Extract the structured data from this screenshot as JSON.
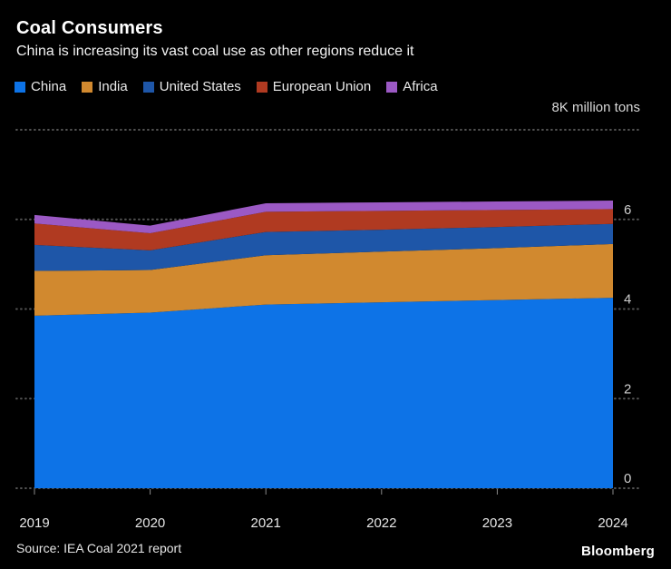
{
  "header": {
    "title": "Coal Consumers",
    "subtitle": "China is increasing its vast coal use as other regions reduce it"
  },
  "unit_label": "8K million tons",
  "footer": {
    "source": "Source: IEA Coal 2021 report",
    "logo": "Bloomberg"
  },
  "chart_data": {
    "type": "area",
    "stacked": true,
    "title": "Coal Consumers",
    "subtitle": "China is increasing its vast coal use as other regions reduce it",
    "xlabel": "",
    "ylabel": "8K million tons",
    "x": [
      2019,
      2020,
      2021,
      2022,
      2023,
      2024
    ],
    "series": [
      {
        "name": "China",
        "color": "#0d73e7",
        "values": [
          3.85,
          3.92,
          4.1,
          4.15,
          4.2,
          4.25
        ]
      },
      {
        "name": "India",
        "color": "#d1892f",
        "values": [
          1.0,
          0.95,
          1.1,
          1.13,
          1.16,
          1.2
        ]
      },
      {
        "name": "United States",
        "color": "#1e56a8",
        "values": [
          0.58,
          0.44,
          0.52,
          0.49,
          0.47,
          0.45
        ]
      },
      {
        "name": "European Union",
        "color": "#b03a21",
        "values": [
          0.48,
          0.38,
          0.45,
          0.42,
          0.38,
          0.33
        ]
      },
      {
        "name": "Africa",
        "color": "#9b59c4",
        "values": [
          0.19,
          0.17,
          0.19,
          0.19,
          0.19,
          0.19
        ]
      }
    ],
    "ylim": [
      0,
      8
    ],
    "yticks": [
      0,
      2,
      4,
      6
    ],
    "grid": "dotted-horizontal",
    "grid_color": "#555555",
    "tick_label_color": "#cfcfcf",
    "x_label_color": "#e6e6e6",
    "legend_position": "top"
  }
}
